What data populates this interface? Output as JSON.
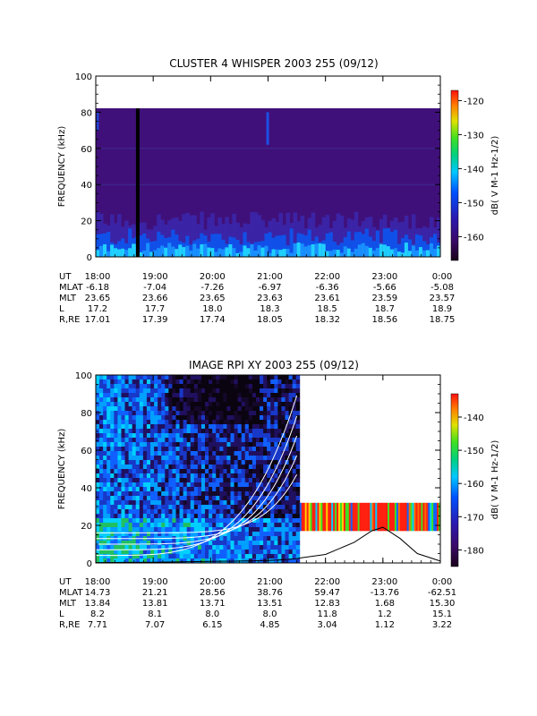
{
  "chart_data": [
    {
      "type": "heatmap",
      "title": "CLUSTER 4 WHISPER 2003 255 (09/12)",
      "ylabel": "FREQUENCY (kHz)",
      "ylim": [
        0,
        100
      ],
      "yticks": [
        "0",
        "20",
        "40",
        "60",
        "80",
        "100"
      ],
      "xlim_hours": [
        18,
        24
      ],
      "xticks": [
        "18:00",
        "19:00",
        "20:00",
        "21:00",
        "22:00",
        "23:00",
        "0:00"
      ],
      "colorbar": {
        "label": "dB( V M-1 Hz-1/2)",
        "range": [
          -167,
          -117
        ],
        "ticks": [
          "-160",
          "-150",
          "-140",
          "-130",
          "-120"
        ],
        "tick_values": [
          -160,
          -150,
          -140,
          -130,
          -120
        ]
      },
      "data_gap_above_khz": 80,
      "black_gap_at_hour": 18.7,
      "ephemeris": [
        {
          "label": "UT",
          "values": [
            "18:00",
            "19:00",
            "20:00",
            "21:00",
            "22:00",
            "23:00",
            "0:00"
          ]
        },
        {
          "label": "MLAT",
          "values": [
            "-6.18",
            "-7.04",
            "-7.26",
            "-6.97",
            "-6.36",
            "-5.66",
            "-5.08"
          ]
        },
        {
          "label": "MLT",
          "values": [
            "23.65",
            "23.66",
            "23.65",
            "23.63",
            "23.61",
            "23.59",
            "23.57"
          ]
        },
        {
          "label": "L",
          "values": [
            "17.2",
            "17.7",
            "18.0",
            "18.3",
            "18.5",
            "18.7",
            "18.9"
          ]
        },
        {
          "label": "R,RE",
          "values": [
            "17.01",
            "17.39",
            "17.74",
            "18.05",
            "18.32",
            "18.56",
            "18.75"
          ]
        }
      ]
    },
    {
      "type": "heatmap",
      "title": "IMAGE RPI XY 2003 255 (09/12)",
      "ylabel": "FREQUENCY (kHz)",
      "ylim": [
        0,
        100
      ],
      "yticks": [
        "0",
        "20",
        "40",
        "60",
        "80",
        "100"
      ],
      "xlim_hours": [
        18,
        24
      ],
      "xticks": [
        "18:00",
        "19:00",
        "20:00",
        "21:00",
        "22:00",
        "23:00",
        "0:00"
      ],
      "colorbar": {
        "label": "dB( V M-1 Hz-1/2)",
        "range": [
          -185,
          -133
        ],
        "ticks": [
          "-180",
          "-170",
          "-160",
          "-150",
          "-140"
        ],
        "tick_values": [
          -180,
          -170,
          -160,
          -150,
          -140
        ]
      },
      "full_band_until_hour": 21.55,
      "narrow_band_khz": [
        17,
        32
      ],
      "overlay_line_hour_x": [
        18.0,
        18.5,
        19.0,
        19.5,
        20.0,
        20.5,
        21.0,
        21.2,
        21.35,
        21.5,
        21.55,
        22.0,
        22.5,
        22.8,
        23.0,
        23.3,
        23.6,
        24.0
      ],
      "overlay_line_khz_y": [
        0.2,
        0.3,
        0.4,
        0.6,
        0.8,
        1.0,
        1.3,
        1.6,
        1.9,
        2.3,
        2.6,
        4.5,
        11.0,
        17.0,
        19.0,
        13.0,
        5.0,
        1.0
      ],
      "ephemeris": [
        {
          "label": "UT",
          "values": [
            "18:00",
            "19:00",
            "20:00",
            "21:00",
            "22:00",
            "23:00",
            "0:00"
          ]
        },
        {
          "label": "MLAT",
          "values": [
            "14.73",
            "21.21",
            "28.56",
            "38.76",
            "59.47",
            "-13.76",
            "-62.51"
          ]
        },
        {
          "label": "MLT",
          "values": [
            "13.84",
            "13.81",
            "13.71",
            "13.51",
            "12.83",
            "1.68",
            "15.30"
          ]
        },
        {
          "label": "L",
          "values": [
            "8.2",
            "8.1",
            "8.0",
            "8.0",
            "11.8",
            "1.2",
            "15.1"
          ]
        },
        {
          "label": "R,RE",
          "values": [
            "7.71",
            "7.07",
            "6.15",
            "4.85",
            "3.04",
            "1.12",
            "3.22"
          ]
        }
      ]
    }
  ]
}
